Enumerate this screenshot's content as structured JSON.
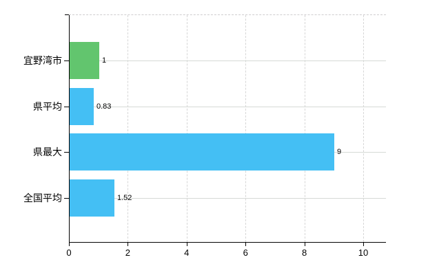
{
  "chart_data": {
    "type": "bar",
    "orientation": "horizontal",
    "title": "",
    "categories": [
      "宜野湾市",
      "県平均",
      "県最大",
      "全国平均"
    ],
    "values": [
      1,
      0.83,
      9,
      1.52
    ],
    "value_labels": [
      "1",
      "0.83",
      "9",
      "1.52"
    ],
    "bar_colors": [
      "#62c56e",
      "#44bff4",
      "#44bff4",
      "#44bff4"
    ],
    "x_ticks": [
      "0",
      "2",
      "4",
      "6",
      "8",
      "10"
    ],
    "x_tick_values": [
      0,
      2,
      4,
      6,
      8,
      10
    ],
    "xlim": [
      0,
      10.77
    ],
    "grid": true,
    "legend_position": "none",
    "background_color": "#ffffff",
    "axis_color": "#000000",
    "gridline_color": "#d6d6d6",
    "accent_green": "#62c56e",
    "accent_blue": "#44bff4"
  }
}
